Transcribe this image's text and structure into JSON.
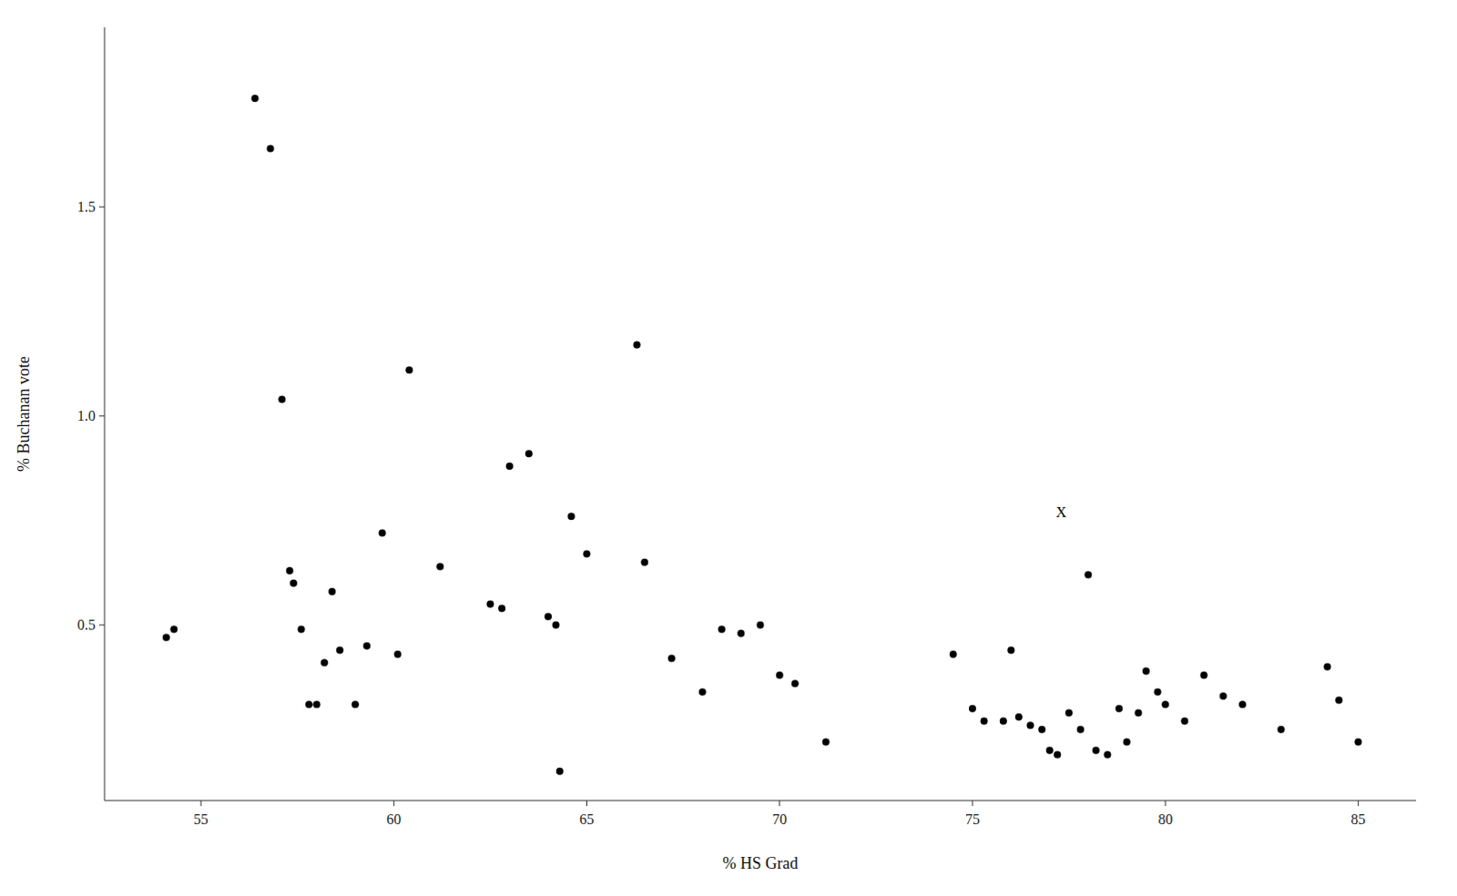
{
  "chart_data": {
    "type": "scatter",
    "x": [
      54.1,
      54.3,
      56.4,
      56.8,
      57.1,
      57.3,
      57.4,
      57.6,
      57.8,
      58.0,
      58.2,
      58.4,
      58.6,
      59.0,
      59.3,
      59.7,
      60.1,
      60.4,
      61.2,
      62.5,
      62.8,
      63.0,
      63.5,
      64.0,
      64.2,
      64.3,
      64.6,
      65.0,
      66.3,
      66.5,
      67.2,
      68.0,
      68.5,
      69.0,
      69.5,
      70.0,
      70.4,
      71.2,
      74.5,
      75.0,
      75.3,
      75.8,
      76.0,
      76.2,
      76.5,
      76.8,
      77.0,
      77.2,
      77.5,
      77.8,
      78.0,
      78.2,
      78.5,
      78.8,
      79.0,
      79.3,
      79.5,
      79.8,
      80.0,
      80.5,
      81.0,
      81.5,
      82.0,
      83.0,
      84.2,
      84.5,
      85.0
    ],
    "values": [
      0.47,
      0.49,
      1.76,
      1.64,
      1.04,
      0.63,
      0.6,
      0.49,
      0.31,
      0.31,
      0.41,
      0.58,
      0.44,
      0.31,
      0.45,
      0.72,
      0.43,
      1.11,
      0.64,
      0.55,
      0.54,
      0.88,
      0.91,
      0.52,
      0.5,
      0.15,
      0.76,
      0.67,
      1.17,
      0.65,
      0.42,
      0.34,
      0.49,
      0.48,
      0.5,
      0.38,
      0.36,
      0.22,
      0.43,
      0.3,
      0.27,
      0.27,
      0.44,
      0.28,
      0.26,
      0.25,
      0.2,
      0.19,
      0.29,
      0.25,
      0.62,
      0.2,
      0.19,
      0.3,
      0.22,
      0.29,
      0.39,
      0.34,
      0.31,
      0.27,
      0.38,
      0.33,
      0.31,
      0.25,
      0.4,
      0.32,
      0.22
    ],
    "color": "#000000",
    "annotations": [
      {
        "text": "X",
        "x": 77.3,
        "y": 0.77
      }
    ],
    "xlabel": "% HS Grad",
    "ylabel": "% Buchanan vote",
    "xlim": [
      52.5,
      86.5
    ],
    "ylim": [
      0.08,
      1.93
    ],
    "xticks": [
      55,
      60,
      65,
      70,
      75,
      80,
      85
    ],
    "yticks": [
      0.5,
      {
        "value": 1.0,
        "label": "1.0"
      },
      1.5
    ],
    "grid": false
  }
}
